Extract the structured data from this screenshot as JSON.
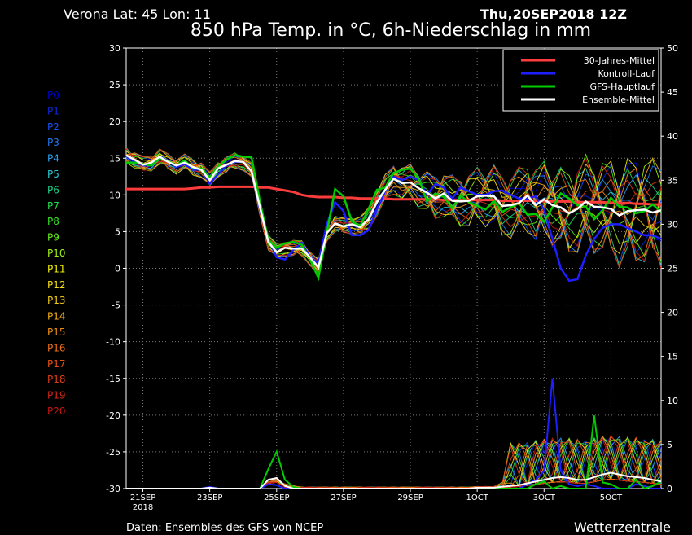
{
  "header": {
    "location": "Verona   Lat: 45  Lon: 11",
    "datetime": "Thu,20SEP2018  12Z",
    "title": "850 hPa Temp. in °C, 6h-Niederschlag in mm"
  },
  "footer": {
    "source": "Daten: Ensembles des GFS von NCEP",
    "brand": "Wetterzentrale"
  },
  "members": [
    {
      "label": "P0",
      "color": "#0000c8"
    },
    {
      "label": "P1",
      "color": "#0a28dc"
    },
    {
      "label": "P2",
      "color": "#1450f0"
    },
    {
      "label": "P3",
      "color": "#1e78f0"
    },
    {
      "label": "P4",
      "color": "#28a0f0"
    },
    {
      "label": "P5",
      "color": "#28c8d2"
    },
    {
      "label": "P6",
      "color": "#1ed28c"
    },
    {
      "label": "P7",
      "color": "#1edc50"
    },
    {
      "label": "P8",
      "color": "#32e61e"
    },
    {
      "label": "P9",
      "color": "#64f014"
    },
    {
      "label": "P10",
      "color": "#a0f014"
    },
    {
      "label": "P11",
      "color": "#f0f000"
    },
    {
      "label": "P12",
      "color": "#f0dc14"
    },
    {
      "label": "P13",
      "color": "#f0c814"
    },
    {
      "label": "P14",
      "color": "#f0aa14"
    },
    {
      "label": "P15",
      "color": "#f08c14"
    },
    {
      "label": "P16",
      "color": "#f06e14"
    },
    {
      "label": "P17",
      "color": "#e65014"
    },
    {
      "label": "P18",
      "color": "#dc3c14"
    },
    {
      "label": "P19",
      "color": "#d22814"
    },
    {
      "label": "P20",
      "color": "#c81414"
    }
  ],
  "chart_data": {
    "type": "line",
    "title": "850 hPa Temp. in °C, 6h-Niederschlag in mm",
    "x_unit": "days from 20SEP2018 12Z",
    "xlim": [
      0.5,
      16.5
    ],
    "ylim_left": [
      -30,
      30
    ],
    "ylim_right": [
      0,
      50
    ],
    "y_ticks_left": [
      30,
      25,
      20,
      15,
      10,
      5,
      0,
      -5,
      -10,
      -15,
      -20,
      -25,
      -30
    ],
    "y_ticks_right": [
      50,
      45,
      40,
      35,
      30,
      25,
      20,
      15,
      10,
      5,
      0
    ],
    "x_ticks": [
      {
        "day": 1,
        "label": "21SEP"
      },
      {
        "day": 3,
        "label": "23SEP"
      },
      {
        "day": 5,
        "label": "25SEP"
      },
      {
        "day": 7,
        "label": "27SEP"
      },
      {
        "day": 9,
        "label": "29SEP"
      },
      {
        "day": 11,
        "label": "1OCT"
      },
      {
        "day": 13,
        "label": "3OCT"
      },
      {
        "day": 15,
        "label": "5OCT"
      }
    ],
    "x_sublabel": {
      "day": 1,
      "label": "2018"
    },
    "grid": true,
    "legend_position": "top-right",
    "legend": [
      {
        "name": "30-Jahres-Mittel",
        "color": "#ff3c3c"
      },
      {
        "name": "Kontroll-Lauf",
        "color": "#1e1eff"
      },
      {
        "name": "GFS-Hauptlauf",
        "color": "#00cc00"
      },
      {
        "name": "Ensemble-Mittel",
        "color": "#ffffff"
      }
    ],
    "temperature": {
      "x_start": 0.5,
      "x_step": 0.25,
      "climate_mean": [
        10.8,
        10.8,
        10.8,
        10.8,
        10.8,
        10.8,
        10.8,
        10.8,
        10.9,
        11,
        11,
        11.1,
        11.1,
        11.1,
        11.1,
        11.1,
        11,
        11,
        10.8,
        10.6,
        10.4,
        10,
        9.8,
        9.7,
        9.7,
        9.7,
        9.6,
        9.6,
        9.5,
        9.5,
        9.5,
        9.5,
        9.4,
        9.4,
        9.4,
        9.4,
        9.4,
        9.4,
        9.3,
        9.3,
        9.3,
        9.3,
        9.3,
        9.3,
        9.3,
        9.2,
        9.2,
        9.2,
        9.2,
        9.2,
        9.1,
        9.1,
        9.1,
        9.1,
        9,
        9,
        9,
        9,
        8.9,
        8.9,
        8.9,
        8.8,
        8.8,
        8.7,
        8.7
      ],
      "control_run": [
        15.3,
        14.5,
        14,
        14,
        15.3,
        14.6,
        13.8,
        14.2,
        13.4,
        13.5,
        11.5,
        12.8,
        14,
        14.5,
        14.5,
        13.2,
        8,
        4,
        1.5,
        1.2,
        2.5,
        3.5,
        1.5,
        0.7,
        6,
        9,
        7.8,
        4.5,
        4.5,
        5.2,
        8,
        10.5,
        12.5,
        12,
        12.5,
        12,
        10,
        11.5,
        11,
        9.5,
        11,
        10.5,
        10,
        10,
        10.5,
        10.6,
        10,
        9.5,
        9.5,
        9.8,
        8,
        4,
        0,
        -1.7,
        -1.5,
        1.8,
        4,
        5.5,
        6,
        6,
        5.5,
        5,
        4.5,
        4.5,
        4
      ],
      "gfs_main": [
        14.4,
        14.4,
        14.2,
        14,
        15,
        14.6,
        14,
        14.7,
        13.6,
        13.6,
        12.4,
        13.9,
        14.8,
        15.4,
        15.2,
        15.1,
        9.1,
        3.9,
        2.8,
        3.4,
        3.6,
        3.2,
        1.2,
        -1.3,
        4.8,
        10.8,
        9.8,
        6.4,
        5.7,
        8.1,
        10.7,
        11,
        13,
        13.4,
        13.6,
        12.2,
        9.1,
        10.2,
        9.7,
        8.2,
        9.9,
        9,
        8.5,
        8,
        9.2,
        7.7,
        8.3,
        8.9,
        7.3,
        7.4,
        6.3,
        8.3,
        10.2,
        9.5,
        8.6,
        8.4,
        6.7,
        7.9,
        9.6,
        8.4,
        8.3,
        7.5,
        7.8,
        8.7,
        7.7
      ],
      "ensemble_mean": [
        15.4,
        14.8,
        14.1,
        14.4,
        15.2,
        14.5,
        14,
        14.4,
        13.8,
        13.4,
        12,
        13.6,
        14.1,
        14.6,
        14.5,
        13.2,
        8.3,
        3.6,
        2.2,
        2.8,
        2.7,
        2.7,
        1.5,
        0.1,
        4.8,
        6.1,
        5.7,
        6,
        5.6,
        6.7,
        9,
        10.7,
        12.2,
        11.6,
        11.7,
        10.9,
        10.3,
        9.5,
        10.2,
        9.2,
        9.1,
        9.2,
        9.8,
        9.9,
        9.8,
        8.5,
        8.6,
        8.9,
        9.9,
        8.6,
        9.4,
        8.6,
        8.3,
        7.5,
        8.1,
        9.1,
        8.4,
        8.3,
        8.1,
        7.2,
        7.8,
        7.9,
        8,
        7.6,
        7.9
      ]
    },
    "precipitation": {
      "x_start": 0.5,
      "x_step": 0.25,
      "control_run": [
        0,
        0,
        0,
        0,
        0,
        0,
        0,
        0,
        0,
        0,
        0.2,
        0,
        0,
        0,
        0,
        0,
        0,
        0.5,
        0.4,
        0,
        0,
        0,
        0,
        0,
        0,
        0,
        0,
        0,
        0,
        0,
        0,
        0,
        0,
        0,
        0,
        0,
        0,
        0,
        0,
        0,
        0,
        0,
        0,
        0,
        0,
        0,
        0,
        0,
        0.5,
        1,
        2,
        12.5,
        2,
        0.5,
        0.3,
        0.5,
        0.3,
        0,
        0,
        0,
        0,
        0.5,
        0.3,
        0,
        0
      ],
      "gfs_main": [
        0,
        0,
        0,
        0,
        0,
        0,
        0,
        0,
        0,
        0,
        0,
        0,
        0,
        0,
        0,
        0,
        0,
        2.2,
        4.2,
        1,
        0.2,
        0,
        0,
        0,
        0,
        0,
        0,
        0,
        0,
        0,
        0,
        0,
        0,
        0,
        0,
        0,
        0,
        0,
        0,
        0,
        0,
        0,
        0,
        0,
        0,
        0,
        0,
        0,
        0,
        0.5,
        0.8,
        0,
        0.3,
        0,
        0,
        0,
        8.3,
        0.7,
        0.5,
        0,
        0,
        1,
        0,
        0.3,
        0.8
      ],
      "ensemble_mean": [
        0,
        0,
        0,
        0,
        0,
        0,
        0,
        0,
        0,
        0,
        0.1,
        0,
        0,
        0,
        0,
        0,
        0,
        1,
        1.2,
        0.3,
        0,
        0,
        0,
        0,
        0,
        0,
        0,
        0,
        0,
        0,
        0,
        0,
        0,
        0,
        0,
        0,
        0,
        0,
        0,
        0,
        0,
        0,
        0.1,
        0.1,
        0.1,
        0.2,
        0.3,
        0.4,
        0.6,
        0.8,
        1,
        1.2,
        1.3,
        1.2,
        1,
        1,
        1.3,
        1.6,
        1.8,
        1.6,
        1.4,
        1.3,
        1.2,
        1,
        0.8
      ]
    }
  }
}
